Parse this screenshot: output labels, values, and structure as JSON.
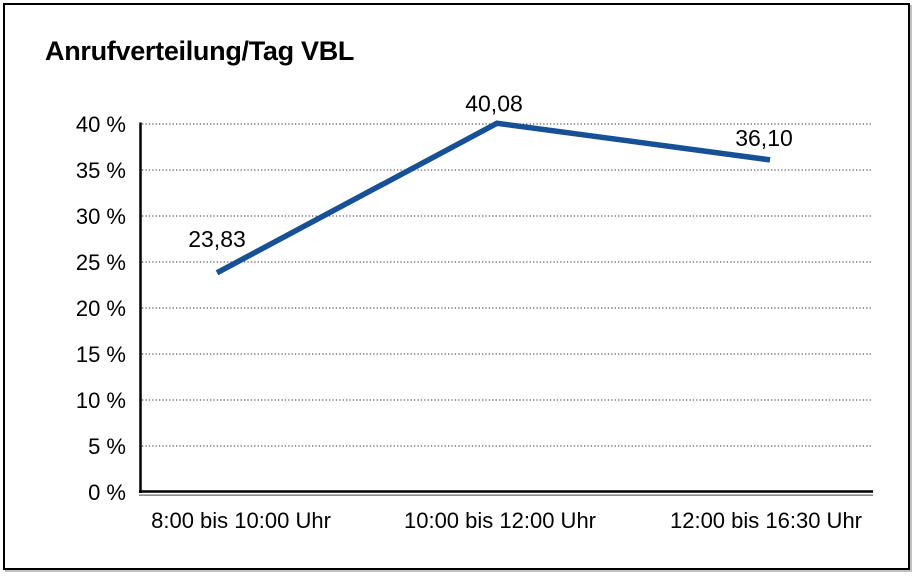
{
  "chart_data": {
    "type": "line",
    "title": "Anrufverteilung/Tag VBL",
    "categories": [
      "8:00 bis 10:00 Uhr",
      "10:00 bis 12:00 Uhr",
      "12:00 bis 16:30 Uhr"
    ],
    "values": [
      23.83,
      40.08,
      36.1
    ],
    "data_labels": [
      "23,83",
      "40,08",
      "36,10"
    ],
    "xlabel": "",
    "ylabel": "",
    "ylim": [
      0,
      40
    ],
    "yticks": [
      0,
      5,
      10,
      15,
      20,
      25,
      30,
      35,
      40
    ],
    "ytick_labels": [
      "0 %",
      "5 %",
      "10 %",
      "15 %",
      "20 %",
      "25 %",
      "30 %",
      "35 %",
      "40 %"
    ],
    "grid": "horizontal-dotted",
    "legend": "none",
    "colors": {
      "line": "#165096",
      "grid": "#5a5a5a",
      "axis": "#000000",
      "axis_shadow": "#8c8c8c",
      "text": "#000000",
      "background": "#ffffff",
      "border": "#000000"
    }
  }
}
